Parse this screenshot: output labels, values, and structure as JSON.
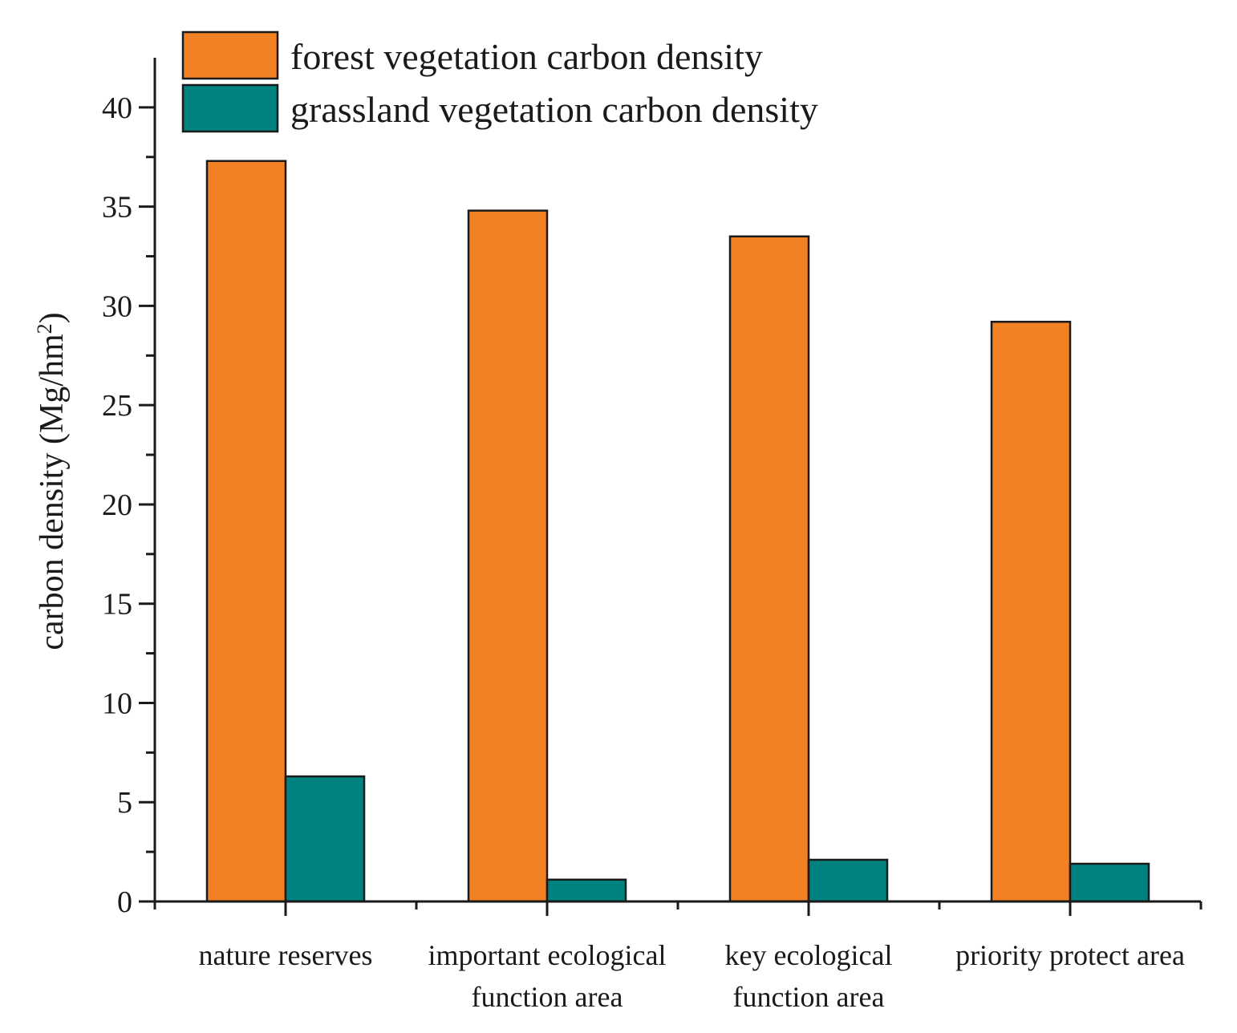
{
  "chart_data": {
    "type": "bar",
    "categories": [
      [
        "nature reserves"
      ],
      [
        "important ecological",
        "function area"
      ],
      [
        "key ecological",
        "function area"
      ],
      [
        "priority protect area"
      ]
    ],
    "series": [
      {
        "name": "forest vegetation carbon density",
        "color": "#f28124",
        "values": [
          37.3,
          34.8,
          33.5,
          29.2
        ]
      },
      {
        "name": "grassland vegetation carbon density",
        "color": "#008380",
        "values": [
          6.3,
          1.1,
          2.1,
          1.9
        ]
      }
    ],
    "ylabel": "carbon density (Mg/hm",
    "ylabel_superscript": "2",
    "ylabel_close": ")",
    "ylim": [
      0,
      42.5
    ],
    "yticks": [
      0,
      5,
      10,
      15,
      20,
      25,
      30,
      35,
      40
    ],
    "ytick_labels": [
      "0",
      "5",
      "10",
      "15",
      "20",
      "25",
      "30",
      "35",
      "40"
    ],
    "legend_position": "top-left",
    "grid": false
  }
}
